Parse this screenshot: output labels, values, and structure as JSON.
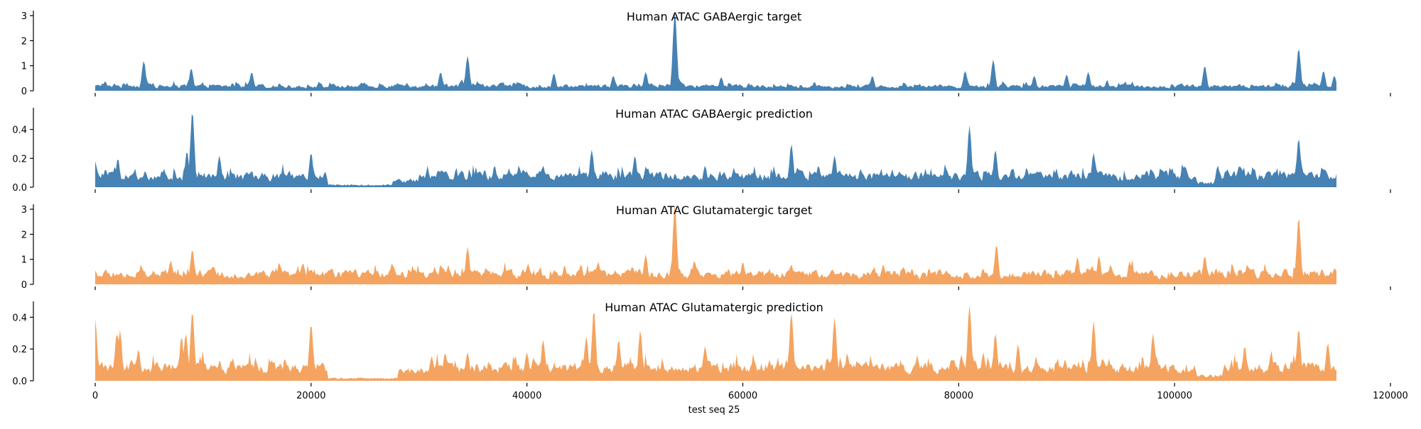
{
  "chart_data": {
    "type": "area",
    "xlabel": "test seq 25",
    "x_range": [
      0,
      115000
    ],
    "xticks": [
      0,
      20000,
      40000,
      60000,
      80000,
      100000,
      120000
    ],
    "xtick_labels": [
      "0",
      "20000",
      "40000",
      "60000",
      "80000",
      "100000",
      "120000"
    ],
    "grid": false,
    "panels": [
      {
        "title": "Human ATAC GABAergic target",
        "color": "#4682b4",
        "ylim": [
          0,
          3.2
        ],
        "yticks": [
          0,
          1,
          2,
          3
        ],
        "ytick_labels": [
          "0",
          "1",
          "2",
          "3"
        ],
        "base": 0.18,
        "peaks": [
          [
            4500,
            1.2
          ],
          [
            8900,
            0.9
          ],
          [
            14500,
            0.75
          ],
          [
            32000,
            0.75
          ],
          [
            34500,
            1.4
          ],
          [
            42500,
            0.7
          ],
          [
            48000,
            0.6
          ],
          [
            51000,
            0.75
          ],
          [
            53700,
            3.2
          ],
          [
            58000,
            0.55
          ],
          [
            72000,
            0.6
          ],
          [
            80600,
            0.8
          ],
          [
            83200,
            1.25
          ],
          [
            87000,
            0.6
          ],
          [
            90000,
            0.65
          ],
          [
            92000,
            0.75
          ],
          [
            102800,
            1.0
          ],
          [
            111500,
            1.7
          ],
          [
            113800,
            0.8
          ],
          [
            114800,
            0.6
          ]
        ]
      },
      {
        "title": "Human ATAC GABAergic prediction",
        "color": "#4682b4",
        "ylim": [
          0,
          0.55
        ],
        "yticks": [
          0,
          0.2,
          0.4
        ],
        "ytick_labels": [
          "0.0",
          "0.2",
          "0.4"
        ],
        "base": 0.075,
        "peaks": [
          [
            0,
            0.18
          ],
          [
            1800,
            0.14
          ],
          [
            2100,
            0.2
          ],
          [
            8500,
            0.25
          ],
          [
            9000,
            0.53
          ],
          [
            11500,
            0.22
          ],
          [
            20000,
            0.24
          ],
          [
            37000,
            0.15
          ],
          [
            41500,
            0.15
          ],
          [
            46000,
            0.26
          ],
          [
            50000,
            0.22
          ],
          [
            56500,
            0.15
          ],
          [
            64500,
            0.3
          ],
          [
            67000,
            0.15
          ],
          [
            68500,
            0.22
          ],
          [
            81000,
            0.43
          ],
          [
            83400,
            0.26
          ],
          [
            92500,
            0.24
          ],
          [
            104000,
            0.15
          ],
          [
            106000,
            0.15
          ],
          [
            111500,
            0.34
          ],
          [
            114000,
            0.12
          ]
        ],
        "low_regions": [
          [
            21500,
            27500,
            0.01
          ],
          [
            27500,
            30000,
            0.03
          ],
          [
            102000,
            104000,
            0.02
          ]
        ]
      },
      {
        "title": "Human ATAC Glutamatergic target",
        "color": "#f4a460",
        "ylim": [
          0,
          3.2
        ],
        "yticks": [
          0,
          1,
          2,
          3
        ],
        "ytick_labels": [
          "0",
          "1",
          "2",
          "3"
        ],
        "base": 0.4,
        "peaks": [
          [
            0,
            0.55
          ],
          [
            7000,
            0.95
          ],
          [
            9000,
            1.4
          ],
          [
            27500,
            0.85
          ],
          [
            34500,
            1.5
          ],
          [
            45000,
            0.8
          ],
          [
            51000,
            1.2
          ],
          [
            53700,
            3.2
          ],
          [
            55500,
            0.95
          ],
          [
            60000,
            0.9
          ],
          [
            64500,
            0.8
          ],
          [
            73000,
            0.8
          ],
          [
            83500,
            1.6
          ],
          [
            91000,
            1.1
          ],
          [
            93000,
            1.15
          ],
          [
            102800,
            1.15
          ],
          [
            111500,
            2.7
          ],
          [
            114800,
            0.55
          ]
        ]
      },
      {
        "title": "Human ATAC Glutamatergic prediction",
        "color": "#f4a460",
        "ylim": [
          0,
          0.5
        ],
        "yticks": [
          0,
          0.2,
          0.4
        ],
        "ytick_labels": [
          "0.0",
          "0.2",
          "0.4"
        ],
        "base": 0.08,
        "peaks": [
          [
            0,
            0.39
          ],
          [
            2000,
            0.3
          ],
          [
            2300,
            0.32
          ],
          [
            4000,
            0.2
          ],
          [
            8000,
            0.28
          ],
          [
            8400,
            0.3
          ],
          [
            9000,
            0.44
          ],
          [
            20000,
            0.36
          ],
          [
            34500,
            0.18
          ],
          [
            40000,
            0.18
          ],
          [
            41500,
            0.26
          ],
          [
            45500,
            0.28
          ],
          [
            46200,
            0.45
          ],
          [
            48500,
            0.26
          ],
          [
            50500,
            0.32
          ],
          [
            56500,
            0.22
          ],
          [
            64500,
            0.43
          ],
          [
            68500,
            0.4
          ],
          [
            81000,
            0.48
          ],
          [
            83400,
            0.3
          ],
          [
            85500,
            0.23
          ],
          [
            92500,
            0.38
          ],
          [
            98000,
            0.3
          ],
          [
            106500,
            0.22
          ],
          [
            111500,
            0.33
          ],
          [
            114200,
            0.24
          ]
        ],
        "low_regions": [
          [
            21500,
            28000,
            0.01
          ],
          [
            28000,
            31000,
            0.04
          ],
          [
            102000,
            104500,
            0.02
          ]
        ]
      }
    ]
  }
}
